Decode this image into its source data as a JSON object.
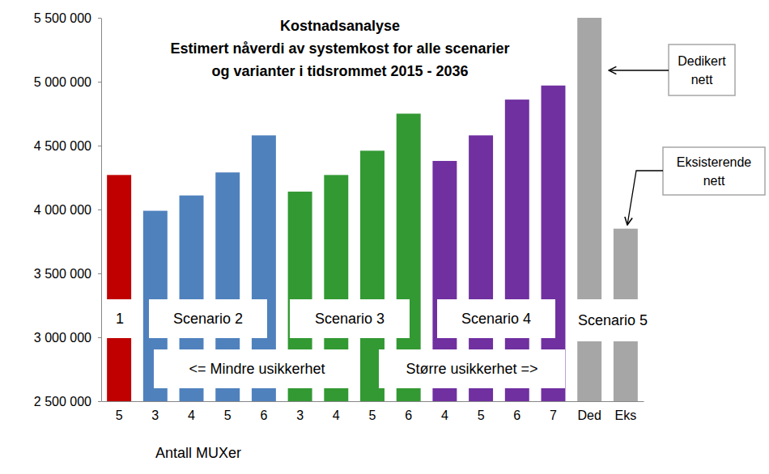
{
  "chart_data": {
    "type": "bar",
    "title": [
      "Kostnadsanalyse",
      "Estimert nåverdi av systemkost for alle scenarier",
      "og varianter i tidsrommet 2015 - 2036"
    ],
    "x_label": "Antall MUXer",
    "categories": [
      "5",
      "3",
      "4",
      "5",
      "6",
      "3",
      "4",
      "5",
      "6",
      "4",
      "5",
      "6",
      "7",
      "Ded",
      "Eks"
    ],
    "values": [
      4270000,
      3990000,
      4110000,
      4290000,
      4580000,
      4140000,
      4270000,
      4460000,
      4750000,
      4380000,
      4580000,
      4860000,
      4970000,
      5500000,
      3850000
    ],
    "colors": [
      "#c00000",
      "#4f81bd",
      "#4f81bd",
      "#4f81bd",
      "#4f81bd",
      "#339933",
      "#339933",
      "#339933",
      "#339933",
      "#7030a0",
      "#7030a0",
      "#7030a0",
      "#7030a0",
      "#a6a6a6",
      "#a6a6a6"
    ],
    "ylim": [
      2500000,
      5500000
    ],
    "yticks": [
      {
        "value": 2500000,
        "label": "2 500 000"
      },
      {
        "value": 3000000,
        "label": "3 000 000"
      },
      {
        "value": 3500000,
        "label": "3 500 000"
      },
      {
        "value": 4000000,
        "label": "4 000 000"
      },
      {
        "value": 4500000,
        "label": "4 500 000"
      },
      {
        "value": 5000000,
        "label": "5 000 000"
      },
      {
        "value": 5500000,
        "label": "5 500 000"
      }
    ],
    "grid": false,
    "data_labels": false,
    "annotations": [
      {
        "text": "1"
      },
      {
        "text": "Scenario 2"
      },
      {
        "text": "Scenario 3"
      },
      {
        "text": "Scenario 4"
      },
      {
        "text": "Scenario 5"
      },
      {
        "text": "<= Mindre usikkerhet"
      },
      {
        "text": "Større usikkerhet =>"
      },
      {
        "text": [
          "Dedikert",
          "nett"
        ]
      },
      {
        "text": [
          "Eksisterende",
          "nett"
        ]
      }
    ]
  }
}
